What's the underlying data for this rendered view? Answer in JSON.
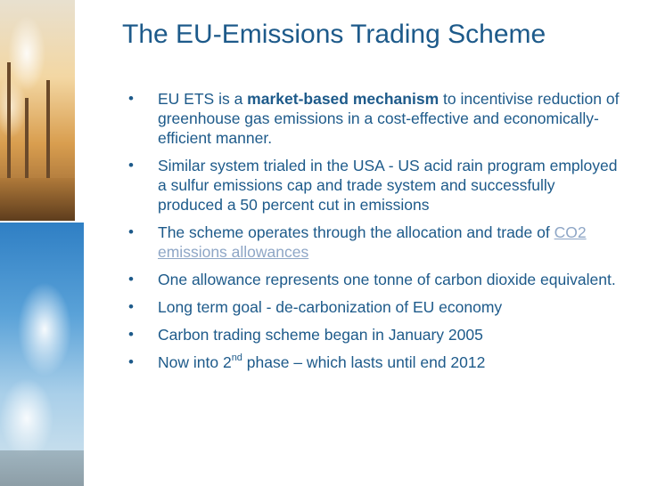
{
  "title": "The EU-Emissions Trading Scheme",
  "images": {
    "top": "industrial smokestacks photo",
    "bottom": "cooling tower steam photo"
  },
  "bullets": [
    {
      "prefix": "EU ETS is a ",
      "bold": "market-based mechanism",
      "suffix": " to incentivise reduction of greenhouse gas emissions in a cost-effective and economically-efficient manner."
    },
    {
      "text": "Similar system trialed in the USA - US acid rain program employed a sulfur emissions cap and trade system and successfully produced a 50 percent cut in emissions"
    },
    {
      "text": "The scheme operates through the allocation and trade of",
      "link": "CO2 emissions allowances"
    },
    {
      "text": "One allowance represents one tonne of carbon dioxide equivalent."
    },
    {
      "text": "Long term goal - de-carbonization of EU economy"
    },
    {
      "text": "Carbon trading scheme began in January 2005"
    },
    {
      "prefix": "Now into 2",
      "sup": "nd",
      "suffix": " phase – which lasts until end 2012"
    }
  ],
  "bullet_glyph": "•",
  "colors": {
    "text": "#1d5a8a",
    "link": "#8ea6c6",
    "background": "#ffffff"
  }
}
